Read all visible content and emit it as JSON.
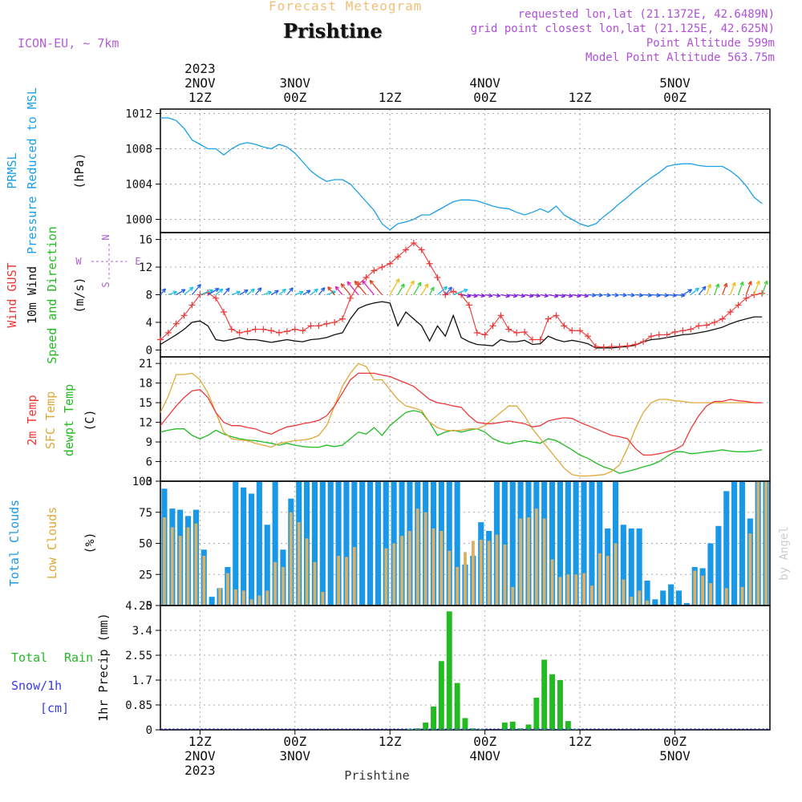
{
  "header": {
    "top_title": "Forecast Meteogram",
    "location": "Prishtine",
    "model": "ICON-EU, ~ 7km",
    "meta_lines": [
      "requested lon,lat (21.1372E, 42.6489N)",
      "grid point closest lon,lat (21.125E, 42.625N)",
      "Point Altitude 599m",
      "Model Point Altitude 563.75m"
    ],
    "top_year": "2023",
    "top_ticks": [
      {
        "t": 12,
        "date": "2NOV",
        "hour": "12Z"
      },
      {
        "t": 24,
        "date": "3NOV",
        "hour": "00Z"
      },
      {
        "t": 36,
        "date": "",
        "hour": "12Z"
      },
      {
        "t": 48,
        "date": "4NOV",
        "hour": "00Z"
      },
      {
        "t": 60,
        "date": "",
        "hour": "12Z"
      },
      {
        "t": 72,
        "date": "5NOV",
        "hour": "00Z"
      }
    ],
    "bottom_ticks": [
      {
        "t": 12,
        "hour": "12Z",
        "date": "2NOV",
        "year": "2023"
      },
      {
        "t": 24,
        "hour": "00Z",
        "date": "3NOV",
        "year": ""
      },
      {
        "t": 36,
        "hour": "12Z",
        "date": "",
        "year": ""
      },
      {
        "t": 48,
        "hour": "00Z",
        "date": "4NOV",
        "year": ""
      },
      {
        "t": 60,
        "hour": "12Z",
        "date": "",
        "year": ""
      },
      {
        "t": 72,
        "hour": "00Z",
        "date": "5NOV",
        "year": ""
      }
    ],
    "bottom_label": "Prishtine",
    "watermark": "by Angel"
  },
  "colors": {
    "pressure": "#1aa0e8",
    "gust": "#ee3838",
    "wind": "#111111",
    "temp": "#ee3838",
    "sfc": "#e0a838",
    "dewpt": "#22bb22",
    "total_cloud": "#1a98e8",
    "low_cloud": "#d8b068",
    "rain": "#22bb22",
    "snow": "#3a3ae8",
    "dir_label": "#b060d0",
    "meta": "#b050d8"
  },
  "chart_data": [
    {
      "type": "line",
      "panel": "pressure",
      "title": "PRMSL Pressure Reduced to MSL",
      "label_lines": [
        "PRMSL",
        "Pressure Reduced to MSL"
      ],
      "unit": "(hPa)",
      "time_start_hour_utc": 7,
      "time_end_hour_utc": 84,
      "ylim": [
        998.5,
        1012.5
      ],
      "yticks": [
        1000,
        1004,
        1008,
        1012
      ],
      "x": [
        7,
        8,
        9,
        10,
        11,
        12,
        13,
        14,
        15,
        16,
        17,
        18,
        19,
        20,
        21,
        22,
        23,
        24,
        25,
        26,
        27,
        28,
        29,
        30,
        31,
        32,
        33,
        34,
        35,
        36,
        37,
        38,
        39,
        40,
        41,
        42,
        43,
        44,
        45,
        46,
        47,
        48,
        49,
        50,
        51,
        52,
        53,
        54,
        55,
        56,
        57,
        58,
        59,
        60,
        61,
        62,
        63,
        64,
        65,
        66,
        67,
        68,
        69,
        70,
        71,
        72,
        73,
        74,
        75,
        76,
        77,
        78,
        79,
        80,
        81,
        82,
        83
      ],
      "values": [
        1011.5,
        1011.5,
        1011.2,
        1010.3,
        1009.0,
        1008.5,
        1008.0,
        1008.0,
        1007.3,
        1008.0,
        1008.5,
        1008.7,
        1008.5,
        1008.2,
        1008.0,
        1008.5,
        1008.2,
        1007.5,
        1006.5,
        1005.5,
        1004.8,
        1004.3,
        1004.5,
        1004.5,
        1004.0,
        1003.0,
        1002.0,
        1001.0,
        999.5,
        998.8,
        999.5,
        999.7,
        1000.0,
        1000.5,
        1000.5,
        1001.0,
        1001.5,
        1002.0,
        1002.2,
        1002.2,
        1002.1,
        1001.8,
        1001.5,
        1001.3,
        1001.2,
        1000.8,
        1000.5,
        1000.8,
        1001.2,
        1000.8,
        1001.5,
        1000.5,
        1000.0,
        999.5,
        999.2,
        999.5,
        1000.3,
        1001.0,
        1001.8,
        1002.5,
        1003.3,
        1004.0,
        1004.7,
        1005.3,
        1006.0,
        1006.2,
        1006.3,
        1006.3,
        1006.1,
        1006.0,
        1006.0,
        1006.0,
        1005.5,
        1004.8,
        1003.8,
        1002.5,
        1001.8
      ]
    },
    {
      "type": "line",
      "panel": "wind",
      "title": "Wind GUST / 10m Wind Speed and Direction",
      "label_gust": "Wind GUST",
      "label_wind": "10m Wind",
      "label_dir": "Speed and Direction",
      "unit": "(m/s)",
      "compass_n": "N",
      "compass_s": "S",
      "compass_w": "W",
      "compass_e": "E",
      "ylim": [
        -1,
        17
      ],
      "yticks": [
        0,
        4,
        8,
        12,
        16
      ],
      "x": [
        7,
        8,
        9,
        10,
        11,
        12,
        13,
        14,
        15,
        16,
        17,
        18,
        19,
        20,
        21,
        22,
        23,
        24,
        25,
        26,
        27,
        28,
        29,
        30,
        31,
        32,
        33,
        34,
        35,
        36,
        37,
        38,
        39,
        40,
        41,
        42,
        43,
        44,
        45,
        46,
        47,
        48,
        49,
        50,
        51,
        52,
        53,
        54,
        55,
        56,
        57,
        58,
        59,
        60,
        61,
        62,
        63,
        64,
        65,
        66,
        67,
        68,
        69,
        70,
        71,
        72,
        73,
        74,
        75,
        76,
        77,
        78,
        79,
        80,
        81,
        82,
        83
      ],
      "series": [
        {
          "name": "Wind GUST",
          "values": [
            1.5,
            2.5,
            3.8,
            5.0,
            6.5,
            8.0,
            8.3,
            7.5,
            5.5,
            3.0,
            2.5,
            2.7,
            3.0,
            3.0,
            2.8,
            2.5,
            2.7,
            3.0,
            2.8,
            3.5,
            3.5,
            3.8,
            4.0,
            4.5,
            7.5,
            9.5,
            10.5,
            11.5,
            12.0,
            12.5,
            13.5,
            14.5,
            15.5,
            14.5,
            12.5,
            10.5,
            8.0,
            8.5,
            8.0,
            6.5,
            2.5,
            2.2,
            3.5,
            5.0,
            3.0,
            2.5,
            2.6,
            1.5,
            1.5,
            4.5,
            5.0,
            3.5,
            2.8,
            2.8,
            2.0,
            0.5,
            0.4,
            0.5,
            0.5,
            0.6,
            0.8,
            1.2,
            2.0,
            2.2,
            2.2,
            2.6,
            2.8,
            3.0,
            3.5,
            3.6,
            4.0,
            4.5,
            5.5,
            6.5,
            7.5,
            8.0,
            8.2
          ]
        },
        {
          "name": "10m Wind",
          "values": [
            0.8,
            1.5,
            2.2,
            3.0,
            4.0,
            4.2,
            3.5,
            1.5,
            1.3,
            1.5,
            1.8,
            1.5,
            1.5,
            1.3,
            1.1,
            1.3,
            1.5,
            1.3,
            1.2,
            1.5,
            1.6,
            1.8,
            2.2,
            2.5,
            4.5,
            6.0,
            6.5,
            6.8,
            7.0,
            6.8,
            3.5,
            5.5,
            4.5,
            3.5,
            1.3,
            3.5,
            2.0,
            5.0,
            1.8,
            1.2,
            0.8,
            0.7,
            0.6,
            1.5,
            1.2,
            1.2,
            1.4,
            0.8,
            0.9,
            2.0,
            1.5,
            1.2,
            1.4,
            1.2,
            0.9,
            0.3,
            0.3,
            0.3,
            0.4,
            0.5,
            0.7,
            1.2,
            1.5,
            1.6,
            1.8,
            2.0,
            2.2,
            2.3,
            2.5,
            2.7,
            3.0,
            3.3,
            3.8,
            4.2,
            4.5,
            4.8,
            4.8
          ]
        }
      ]
    },
    {
      "type": "line",
      "panel": "temperature",
      "title": "2m Temp / SFC Temp / dewpt Temp",
      "label_temp": "2m Temp",
      "label_sfc": "SFC Temp",
      "label_dew": "dewpt Temp",
      "unit": "(C)",
      "ylim": [
        3,
        22
      ],
      "yticks": [
        3,
        6,
        9,
        12,
        15,
        18,
        21
      ],
      "x": [
        7,
        8,
        9,
        10,
        11,
        12,
        13,
        14,
        15,
        16,
        17,
        18,
        19,
        20,
        21,
        22,
        23,
        24,
        25,
        26,
        27,
        28,
        29,
        30,
        31,
        32,
        33,
        34,
        35,
        36,
        37,
        38,
        39,
        40,
        41,
        42,
        43,
        44,
        45,
        46,
        47,
        48,
        49,
        50,
        51,
        52,
        53,
        54,
        55,
        56,
        57,
        58,
        59,
        60,
        61,
        62,
        63,
        64,
        65,
        66,
        67,
        68,
        69,
        70,
        71,
        72,
        73,
        74,
        75,
        76,
        77,
        78,
        79,
        80,
        81,
        82,
        83
      ],
      "series": [
        {
          "name": "2m Temp",
          "values": [
            11.5,
            13.0,
            14.5,
            15.8,
            16.8,
            17.0,
            15.8,
            13.5,
            12.0,
            11.5,
            11.5,
            11.2,
            11.0,
            10.5,
            10.2,
            10.8,
            11.3,
            11.5,
            11.8,
            12.0,
            12.3,
            13.0,
            14.5,
            16.5,
            18.5,
            19.5,
            19.5,
            19.5,
            19.2,
            19.0,
            18.5,
            18.0,
            17.5,
            16.5,
            15.5,
            15.0,
            14.8,
            14.5,
            14.3,
            13.0,
            12.0,
            11.8,
            11.8,
            12.0,
            12.2,
            12.0,
            11.8,
            11.3,
            11.5,
            12.2,
            12.5,
            12.7,
            12.6,
            12.0,
            11.5,
            11.0,
            10.5,
            10.0,
            9.8,
            9.5,
            8.0,
            7.0,
            7.0,
            7.2,
            7.5,
            7.8,
            8.5,
            11.0,
            13.0,
            14.5,
            15.2,
            15.2,
            15.5,
            15.3,
            15.2,
            15.0,
            15.0
          ]
        },
        {
          "name": "SFC Temp",
          "values": [
            13.5,
            16.0,
            19.3,
            19.3,
            19.5,
            18.5,
            16.5,
            13.5,
            10.5,
            9.5,
            9.3,
            9.2,
            8.8,
            8.5,
            8.2,
            8.8,
            9.0,
            9.2,
            9.3,
            9.5,
            10.0,
            11.5,
            14.5,
            17.5,
            19.5,
            21.0,
            20.5,
            18.5,
            18.5,
            17.0,
            15.5,
            14.5,
            14.2,
            13.8,
            12.0,
            11.2,
            10.8,
            10.7,
            10.8,
            11.0,
            11.0,
            11.5,
            12.5,
            13.5,
            14.5,
            14.5,
            13.0,
            11.0,
            9.5,
            8.0,
            6.5,
            5.0,
            4.0,
            3.8,
            3.8,
            3.9,
            4.0,
            4.5,
            5.5,
            8.0,
            11.0,
            13.5,
            15.0,
            15.5,
            15.5,
            15.3,
            15.2,
            15.0,
            15.0,
            15.0,
            15.0,
            15.0,
            15.0,
            15.0,
            15.0,
            15.0,
            15.0
          ]
        },
        {
          "name": "dewpt Temp",
          "values": [
            10.5,
            10.8,
            11.0,
            11.0,
            10.0,
            9.5,
            10.0,
            10.8,
            10.2,
            9.8,
            9.5,
            9.3,
            9.2,
            9.0,
            8.8,
            8.5,
            8.8,
            8.5,
            8.3,
            8.2,
            8.2,
            8.5,
            8.3,
            8.5,
            9.5,
            10.5,
            10.2,
            11.2,
            10.0,
            11.5,
            12.5,
            13.5,
            13.8,
            13.5,
            12.0,
            10.0,
            10.5,
            10.8,
            10.5,
            10.8,
            11.0,
            10.5,
            9.5,
            9.0,
            8.7,
            9.0,
            9.2,
            9.0,
            8.8,
            9.5,
            9.2,
            8.5,
            7.8,
            7.0,
            6.5,
            5.8,
            5.2,
            4.8,
            4.2,
            4.5,
            4.8,
            5.2,
            5.5,
            6.0,
            6.8,
            7.5,
            7.5,
            7.2,
            7.3,
            7.5,
            7.6,
            7.8,
            7.6,
            7.5,
            7.5,
            7.6,
            7.8
          ]
        }
      ]
    },
    {
      "type": "bar",
      "panel": "clouds",
      "title": "Total Clouds / Low Clouds",
      "label_total": "Total Clouds",
      "label_low": "Low Clouds",
      "unit": "(%)",
      "ylim": [
        0,
        100
      ],
      "yticks": [
        0,
        25,
        50,
        75,
        100
      ],
      "x": [
        7,
        8,
        9,
        10,
        11,
        12,
        13,
        14,
        15,
        16,
        17,
        18,
        19,
        20,
        21,
        22,
        23,
        24,
        25,
        26,
        27,
        28,
        29,
        30,
        31,
        32,
        33,
        34,
        35,
        36,
        37,
        38,
        39,
        40,
        41,
        42,
        43,
        44,
        45,
        46,
        47,
        48,
        49,
        50,
        51,
        52,
        53,
        54,
        55,
        56,
        57,
        58,
        59,
        60,
        61,
        62,
        63,
        64,
        65,
        66,
        67,
        68,
        69,
        70,
        71,
        72,
        73,
        74,
        75,
        76,
        77,
        78,
        79,
        80,
        81,
        82,
        83
      ],
      "series": [
        {
          "name": "Total Clouds",
          "values": [
            94,
            78,
            77,
            72,
            77,
            45,
            7,
            14,
            31,
            100,
            95,
            90,
            100,
            65,
            100,
            45,
            86,
            100,
            100,
            100,
            100,
            100,
            100,
            100,
            100,
            100,
            100,
            100,
            100,
            100,
            100,
            100,
            100,
            100,
            100,
            100,
            100,
            100,
            33,
            40,
            67,
            60,
            100,
            100,
            100,
            100,
            100,
            100,
            100,
            100,
            100,
            100,
            100,
            100,
            100,
            100,
            62,
            100,
            65,
            62,
            62,
            20,
            5,
            12,
            17,
            12,
            2,
            31,
            30,
            50,
            64,
            92,
            100,
            100,
            70,
            100,
            100
          ]
        },
        {
          "name": "Low Clouds",
          "values": [
            71,
            63,
            56,
            63,
            66,
            40,
            0,
            14,
            26,
            13,
            12,
            5,
            8,
            12,
            35,
            31,
            75,
            67,
            54,
            35,
            11,
            0,
            40,
            39,
            47,
            0,
            0,
            0,
            46,
            50,
            56,
            60,
            78,
            75,
            62,
            60,
            44,
            31,
            43,
            52,
            53,
            52,
            57,
            49,
            15,
            70,
            71,
            78,
            70,
            37,
            23,
            25,
            25,
            26,
            16,
            42,
            40,
            50,
            21,
            7,
            12,
            4,
            0,
            0,
            0,
            0,
            0,
            28,
            24,
            18,
            0,
            14,
            0,
            15,
            58,
            100,
            100
          ]
        }
      ]
    },
    {
      "type": "bar",
      "panel": "precipitation",
      "title": "1hr Precip (mm)",
      "label_total": "Total",
      "label_rain": "Rain",
      "label_snow": "Snow/1h",
      "label_cm": "[cm]",
      "unit": "1hr Precip (mm)",
      "ylim": [
        0,
        4.25
      ],
      "yticks": [
        0,
        0.85,
        1.7,
        2.55,
        3.4,
        4.25
      ],
      "x": [
        38,
        39,
        40,
        41,
        42,
        43,
        44,
        45,
        46,
        47,
        50,
        51,
        52,
        53,
        54,
        55,
        56,
        57,
        58,
        59
      ],
      "series": [
        {
          "name": "Rain",
          "values": [
            0.03,
            0.05,
            0.25,
            0.8,
            2.35,
            4.05,
            1.6,
            0.4,
            0.05,
            0.02,
            0.25,
            0.28,
            0.05,
            0.18,
            1.1,
            2.4,
            1.9,
            1.7,
            0.3,
            0.02
          ]
        }
      ]
    }
  ]
}
